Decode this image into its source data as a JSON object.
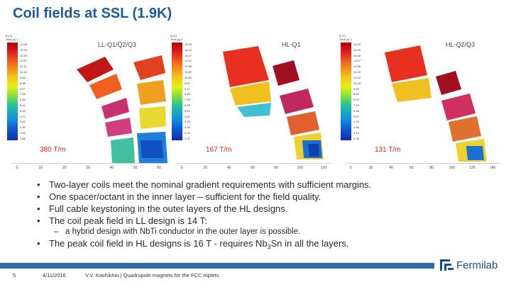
{
  "slide": {
    "title": "Coil fields at SSL (1.9K)",
    "page_number": "5",
    "date": "4/11/2016",
    "footer_text": "V.V. Kashikhin | Quadrupole magnets for the FCC triplets",
    "logo_text": "Fermilab"
  },
  "panels": [
    {
      "label": "LL-Q1/Q2/Q3",
      "gradient": "380 T/m",
      "scale_header": "B (T)\nTime (s) 1",
      "scale_ticks": [
        "13.95",
        "13.24",
        "12.53",
        "11.82",
        "11.11",
        "10.40",
        "9.69",
        "8.98",
        "8.27",
        "7.56",
        "6.85",
        "6.14",
        "5.43",
        "4.72",
        "4.01",
        "3.30",
        "2.59",
        "1.88"
      ],
      "axis_ticks": [
        "0",
        "10",
        "20",
        "30",
        "40",
        "50",
        "60"
      ]
    },
    {
      "label": "HL-Q1",
      "gradient": "167 T/m",
      "scale_header": "B (T)\nTime (s) 1",
      "scale_ticks": [
        "15.99",
        "15.13",
        "14.27",
        "13.41",
        "12.55",
        "11.69",
        "10.83",
        "9.97",
        "9.11",
        "8.25",
        "7.39",
        "6.53",
        "5.67",
        "4.81",
        "3.95",
        "3.09",
        "2.23",
        "1.37"
      ],
      "axis_ticks": [
        "0",
        "20",
        "40",
        "60",
        "80",
        "100",
        "120"
      ]
    },
    {
      "label": "HL-Q2/Q3",
      "gradient": "131 T/m",
      "scale_header": "B (T)\nTime (s) 1",
      "scale_ticks": [
        "16.09",
        "15.28",
        "14.48",
        "13.67",
        "12.86",
        "12.05",
        "11.24",
        "10.43",
        "9.62",
        "8.81",
        "8.00",
        "7.19",
        "6.38",
        "5.57",
        "4.76",
        "3.95",
        "3.14",
        "2.33"
      ],
      "axis_ticks": [
        "0",
        "20",
        "40",
        "60",
        "80",
        "100",
        "120",
        "140"
      ]
    }
  ],
  "bullets": [
    "Two-layer coils meet the nominal gradient requirements with sufficient margins.",
    "One spacer/octant in the inner layer – sufficient for the field quality.",
    "Full cable keystoning in the outer layers of the HL designs.",
    "The coil peak field in LL design is 14 T:"
  ],
  "sub_bullet": "a hybrid design with NbTi conductor in the outer layer is possible.",
  "last_bullet": {
    "pre": "The peak coil field in HL designs is 16 T - requires Nb",
    "sub": "3",
    "post": "Sn in all the layers."
  }
}
